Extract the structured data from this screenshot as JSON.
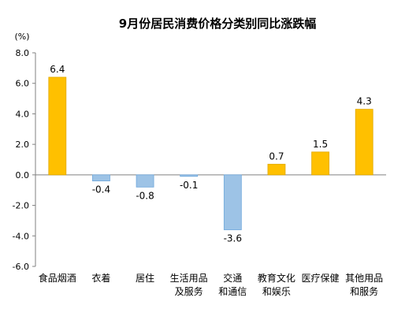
{
  "chart_data": {
    "type": "bar",
    "title": "9月份居民消费价格分类别同比涨跌幅",
    "ylabel": "(%)",
    "xlabel": "",
    "ylim": [
      -6.0,
      8.0
    ],
    "yticks": [
      "8.0",
      "6.0",
      "4.0",
      "2.0",
      "0.0",
      "-2.0",
      "-4.0",
      "-6.0"
    ],
    "ytick_values": [
      8,
      6,
      4,
      2,
      0,
      -2,
      -4,
      -6
    ],
    "categories": [
      [
        "食品烟酒"
      ],
      [
        "衣着"
      ],
      [
        "居住"
      ],
      [
        "生活用品",
        "及服务"
      ],
      [
        "交通",
        "和通信"
      ],
      [
        "教育文化",
        "和娱乐"
      ],
      [
        "医疗保健"
      ],
      [
        "其他用品",
        "和服务"
      ]
    ],
    "values": [
      6.4,
      -0.4,
      -0.8,
      -0.1,
      -3.6,
      0.7,
      1.5,
      4.3
    ],
    "value_labels": [
      "6.4",
      "-0.4",
      "-0.8",
      "-0.1",
      "-3.6",
      "0.7",
      "1.5",
      "4.3"
    ],
    "grid": false,
    "legend": "none",
    "colors": {
      "positive": "#FFC000",
      "negative": "#9DC3E6",
      "positive_edge": "#E0A800",
      "negative_edge": "#6FA8DC",
      "axis": "#808080"
    }
  }
}
